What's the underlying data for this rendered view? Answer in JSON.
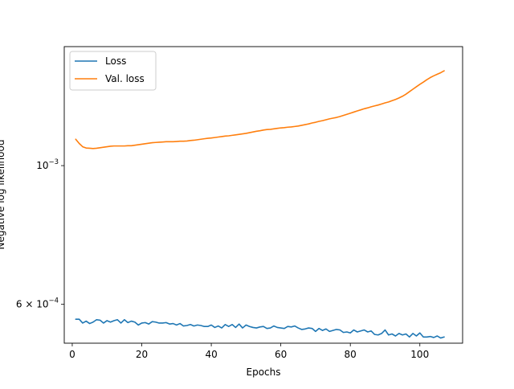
{
  "chart_data": {
    "type": "line",
    "title": "",
    "xlabel": "Epochs",
    "ylabel": "Negative log likelihood",
    "xlim": [
      -2.3,
      112.3
    ],
    "ylim": [
      0.00052,
      0.00155
    ],
    "yscale": "log",
    "grid": false,
    "legend_position": "upper-left",
    "x_ticks": [
      0,
      20,
      40,
      60,
      80,
      100
    ],
    "x_tick_labels": [
      "0",
      "20",
      "40",
      "60",
      "80",
      "100"
    ],
    "y_ticks": [
      0.0006,
      0.001
    ],
    "y_tick_labels": [
      {
        "base": "6 × 10",
        "exp": "−4"
      },
      {
        "base": "10",
        "exp": "−3"
      }
    ],
    "series": [
      {
        "name": "Loss",
        "color": "#1f77b4",
        "x": [
          1,
          2,
          3,
          4,
          5,
          6,
          7,
          8,
          9,
          10,
          11,
          12,
          13,
          14,
          15,
          16,
          17,
          18,
          19,
          20,
          21,
          22,
          23,
          24,
          25,
          26,
          27,
          28,
          29,
          30,
          31,
          32,
          33,
          34,
          35,
          36,
          37,
          38,
          39,
          40,
          41,
          42,
          43,
          44,
          45,
          46,
          47,
          48,
          49,
          50,
          51,
          52,
          53,
          54,
          55,
          56,
          57,
          58,
          59,
          60,
          61,
          62,
          63,
          64,
          65,
          66,
          67,
          68,
          69,
          70,
          71,
          72,
          73,
          74,
          75,
          76,
          77,
          78,
          79,
          80,
          81,
          82,
          83,
          84,
          85,
          86,
          87,
          88,
          89,
          90,
          91,
          92,
          93,
          94,
          95,
          96,
          97,
          98,
          99,
          100,
          101,
          102,
          103,
          104,
          105,
          106,
          107
        ],
        "y": [
          0.000568,
          0.000568,
          0.00056,
          0.000564,
          0.000559,
          0.000562,
          0.000567,
          0.000566,
          0.00056,
          0.000565,
          0.000562,
          0.000565,
          0.000567,
          0.00056,
          0.000567,
          0.000561,
          0.000564,
          0.000562,
          0.000556,
          0.00056,
          0.000561,
          0.000558,
          0.000563,
          0.000562,
          0.00056,
          0.00056,
          0.000561,
          0.000558,
          0.000559,
          0.000556,
          0.000559,
          0.000554,
          0.000555,
          0.000557,
          0.000554,
          0.000556,
          0.000555,
          0.000553,
          0.000553,
          0.000556,
          0.000551,
          0.000554,
          0.00055,
          0.000557,
          0.000553,
          0.000557,
          0.000551,
          0.000558,
          0.00055,
          0.000556,
          0.000553,
          0.000551,
          0.00055,
          0.000552,
          0.000553,
          0.000549,
          0.00055,
          0.000554,
          0.000551,
          0.00055,
          0.000549,
          0.000553,
          0.000552,
          0.000554,
          0.00055,
          0.000547,
          0.000548,
          0.00055,
          0.000549,
          0.000543,
          0.000549,
          0.000545,
          0.000548,
          0.000543,
          0.000545,
          0.000547,
          0.000546,
          0.000541,
          0.000542,
          0.00054,
          0.000546,
          0.000542,
          0.000544,
          0.000546,
          0.000542,
          0.000544,
          0.000537,
          0.000536,
          0.000539,
          0.000546,
          0.000536,
          0.000538,
          0.000534,
          0.000539,
          0.000536,
          0.000538,
          0.000532,
          0.000539,
          0.000534,
          0.00054,
          0.000532,
          0.000532,
          0.000533,
          0.000531,
          0.000534,
          0.00053,
          0.000532
        ]
      },
      {
        "name": "Val. loss",
        "color": "#ff7f0e",
        "x": [
          1,
          2,
          3,
          4,
          5,
          6,
          7,
          8,
          9,
          10,
          11,
          12,
          13,
          14,
          15,
          16,
          17,
          18,
          19,
          20,
          21,
          22,
          23,
          24,
          25,
          26,
          27,
          28,
          29,
          30,
          31,
          32,
          33,
          34,
          35,
          36,
          37,
          38,
          39,
          40,
          41,
          42,
          43,
          44,
          45,
          46,
          47,
          48,
          49,
          50,
          51,
          52,
          53,
          54,
          55,
          56,
          57,
          58,
          59,
          60,
          61,
          62,
          63,
          64,
          65,
          66,
          67,
          68,
          69,
          70,
          71,
          72,
          73,
          74,
          75,
          76,
          77,
          78,
          79,
          80,
          81,
          82,
          83,
          84,
          85,
          86,
          87,
          88,
          89,
          90,
          91,
          92,
          93,
          94,
          95,
          96,
          97,
          98,
          99,
          100,
          101,
          102,
          103,
          104,
          105,
          106,
          107
        ],
        "y": [
          0.001102,
          0.001085,
          0.001072,
          0.001067,
          0.001066,
          0.001065,
          0.001066,
          0.001068,
          0.00107,
          0.001072,
          0.001074,
          0.001075,
          0.001075,
          0.001075,
          0.001075,
          0.001076,
          0.001076,
          0.001078,
          0.00108,
          0.001082,
          0.001084,
          0.001086,
          0.001088,
          0.001089,
          0.00109,
          0.001091,
          0.001092,
          0.001092,
          0.001092,
          0.001093,
          0.001094,
          0.001094,
          0.001095,
          0.001097,
          0.001098,
          0.0011,
          0.001102,
          0.001104,
          0.001106,
          0.001107,
          0.001109,
          0.001111,
          0.001113,
          0.001115,
          0.001116,
          0.001118,
          0.00112,
          0.001122,
          0.001124,
          0.001126,
          0.001129,
          0.001132,
          0.001135,
          0.001137,
          0.00114,
          0.001142,
          0.001143,
          0.001145,
          0.001147,
          0.001149,
          0.00115,
          0.001152,
          0.001153,
          0.001155,
          0.001157,
          0.00116,
          0.001163,
          0.001166,
          0.00117,
          0.001173,
          0.001177,
          0.00118,
          0.001184,
          0.001188,
          0.001191,
          0.001194,
          0.001198,
          0.001203,
          0.001208,
          0.001213,
          0.001218,
          0.001223,
          0.001228,
          0.001233,
          0.001237,
          0.001242,
          0.001246,
          0.00125,
          0.001255,
          0.00126,
          0.001264,
          0.00127,
          0.001276,
          0.001283,
          0.001291,
          0.001301,
          0.001313,
          0.001325,
          0.001337,
          0.001349,
          0.00136,
          0.001372,
          0.001383,
          0.001392,
          0.0014,
          0.001408,
          0.001418
        ]
      }
    ]
  }
}
